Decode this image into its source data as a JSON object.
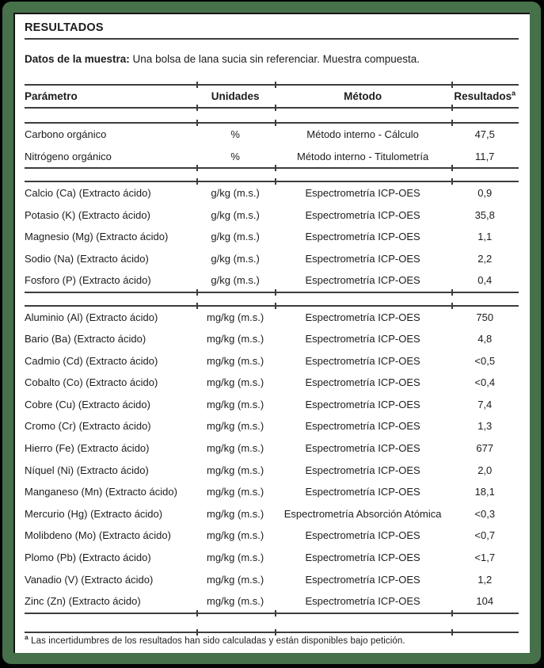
{
  "title": "RESULTADOS",
  "sample": {
    "label": "Datos de la muestra:",
    "text": " Una bolsa de lana sucia sin referenciar. Muestra compuesta."
  },
  "table": {
    "headers": [
      "Parámetro",
      "Unidades",
      "Método",
      "Resultados"
    ],
    "result_superscript": "a",
    "sections": [
      {
        "rows": [
          {
            "parametro": "Carbono orgánico",
            "unidades": "%",
            "metodo": "Método interno - Cálculo",
            "resultado": "47,5"
          },
          {
            "parametro": "Nitrógeno orgánico",
            "unidades": "%",
            "metodo": "Método interno - Titulometría",
            "resultado": "11,7"
          }
        ]
      },
      {
        "rows": [
          {
            "parametro": "Calcio (Ca) (Extracto ácido)",
            "unidades": "g/kg (m.s.)",
            "metodo": "Espectrometría ICP-OES",
            "resultado": "0,9"
          },
          {
            "parametro": "Potasio (K) (Extracto ácido)",
            "unidades": "g/kg (m.s.)",
            "metodo": "Espectrometría ICP-OES",
            "resultado": "35,8"
          },
          {
            "parametro": "Magnesio (Mg) (Extracto ácido)",
            "unidades": "g/kg (m.s.)",
            "metodo": "Espectrometría ICP-OES",
            "resultado": "1,1"
          },
          {
            "parametro": "Sodio (Na) (Extracto ácido)",
            "unidades": "g/kg (m.s.)",
            "metodo": "Espectrometría ICP-OES",
            "resultado": "2,2"
          },
          {
            "parametro": "Fosforo (P) (Extracto ácido)",
            "unidades": "g/kg (m.s.)",
            "metodo": "Espectrometría ICP-OES",
            "resultado": "0,4"
          }
        ]
      },
      {
        "rows": [
          {
            "parametro": "Aluminio (Al) (Extracto ácido)",
            "unidades": "mg/kg (m.s.)",
            "metodo": "Espectrometría ICP-OES",
            "resultado": "750"
          },
          {
            "parametro": "Bario (Ba) (Extracto ácido)",
            "unidades": "mg/kg (m.s.)",
            "metodo": "Espectrometría ICP-OES",
            "resultado": "4,8"
          },
          {
            "parametro": "Cadmio (Cd) (Extracto ácido)",
            "unidades": "mg/kg (m.s.)",
            "metodo": "Espectrometría ICP-OES",
            "resultado": "<0,5"
          },
          {
            "parametro": "Cobalto (Co) (Extracto ácido)",
            "unidades": "mg/kg (m.s.)",
            "metodo": "Espectrometría ICP-OES",
            "resultado": "<0,4"
          },
          {
            "parametro": "Cobre (Cu) (Extracto ácido)",
            "unidades": "mg/kg (m.s.)",
            "metodo": "Espectrometría ICP-OES",
            "resultado": "7,4"
          },
          {
            "parametro": "Cromo (Cr) (Extracto ácido)",
            "unidades": "mg/kg (m.s.)",
            "metodo": "Espectrometría ICP-OES",
            "resultado": "1,3"
          },
          {
            "parametro": "Hierro (Fe) (Extracto ácido)",
            "unidades": "mg/kg (m.s.)",
            "metodo": "Espectrometría ICP-OES",
            "resultado": "677"
          },
          {
            "parametro": "Níquel (Ni) (Extracto ácido)",
            "unidades": "mg/kg (m.s.)",
            "metodo": "Espectrometría ICP-OES",
            "resultado": "2,0"
          },
          {
            "parametro": "Manganeso (Mn) (Extracto ácido)",
            "unidades": "mg/kg (m.s.)",
            "metodo": "Espectrometría ICP-OES",
            "resultado": "18,1"
          },
          {
            "parametro": "Mercurio (Hg) (Extracto ácido)",
            "unidades": "mg/kg (m.s.)",
            "metodo": "Espectrometría Absorción Atómica",
            "resultado": "<0,3"
          },
          {
            "parametro": "Molibdeno (Mo) (Extracto ácido)",
            "unidades": "mg/kg (m.s.)",
            "metodo": "Espectrometría ICP-OES",
            "resultado": "<0,7"
          },
          {
            "parametro": "Plomo (Pb) (Extracto ácido)",
            "unidades": "mg/kg (m.s.)",
            "metodo": "Espectrometría ICP-OES",
            "resultado": "<1,7"
          },
          {
            "parametro": "Vanadio (V) (Extracto ácido)",
            "unidades": "mg/kg (m.s.)",
            "metodo": "Espectrometría ICP-OES",
            "resultado": "1,2"
          },
          {
            "parametro": "Zinc (Zn) (Extracto ácido)",
            "unidades": "mg/kg (m.s.)",
            "metodo": "Espectrometría ICP-OES",
            "resultado": "104"
          }
        ]
      }
    ]
  },
  "footnote": {
    "superscript": "a",
    "text": " Las incertidumbres de los resultados han sido calculadas y están disponibles bajo petición."
  },
  "colors": {
    "frame_green": "#46714b",
    "frame_shadow_black": "#060606",
    "rule_gray": "#3d3d3d",
    "text": "#1c1c1c",
    "background": "#ffffff"
  }
}
